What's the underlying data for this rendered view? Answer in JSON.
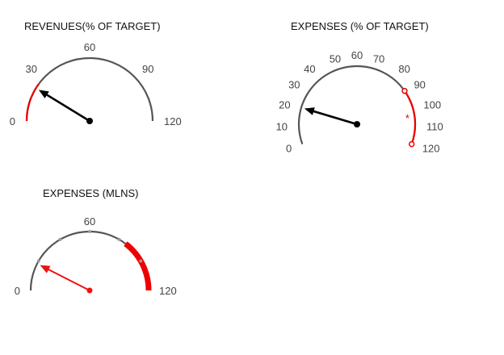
{
  "colors": {
    "scale": "#555555",
    "alert": "#ee0000",
    "needle_dark": "#000000",
    "needle_red": "#ee1111",
    "label": "#444444"
  },
  "chart_data": [
    {
      "type": "gauge",
      "title": "REVENUES(% OF TARGET)",
      "min": 0,
      "max": 120,
      "tick_labels": [
        "0",
        "30",
        "60",
        "90",
        "120"
      ],
      "value": 21,
      "alert_band": [
        0,
        24
      ],
      "needle_color": "dark"
    },
    {
      "type": "gauge",
      "title": "EXPENSES (% OF TARGET)",
      "min": 0,
      "max": 120,
      "tick_labels": [
        "0",
        "10",
        "20",
        "30",
        "40",
        "50",
        "60",
        "70",
        "80",
        "90",
        "100",
        "110",
        "120"
      ],
      "value": 20,
      "alert_band": [
        90,
        120
      ],
      "alert_marker": "*",
      "needle_color": "dark"
    },
    {
      "type": "gauge",
      "title": "EXPENSES (MLNS)",
      "min": 0,
      "max": 120,
      "tick_labels": [
        "0",
        "60",
        "120"
      ],
      "value": 18,
      "alert_band": [
        85,
        120
      ],
      "needle_color": "red"
    }
  ]
}
